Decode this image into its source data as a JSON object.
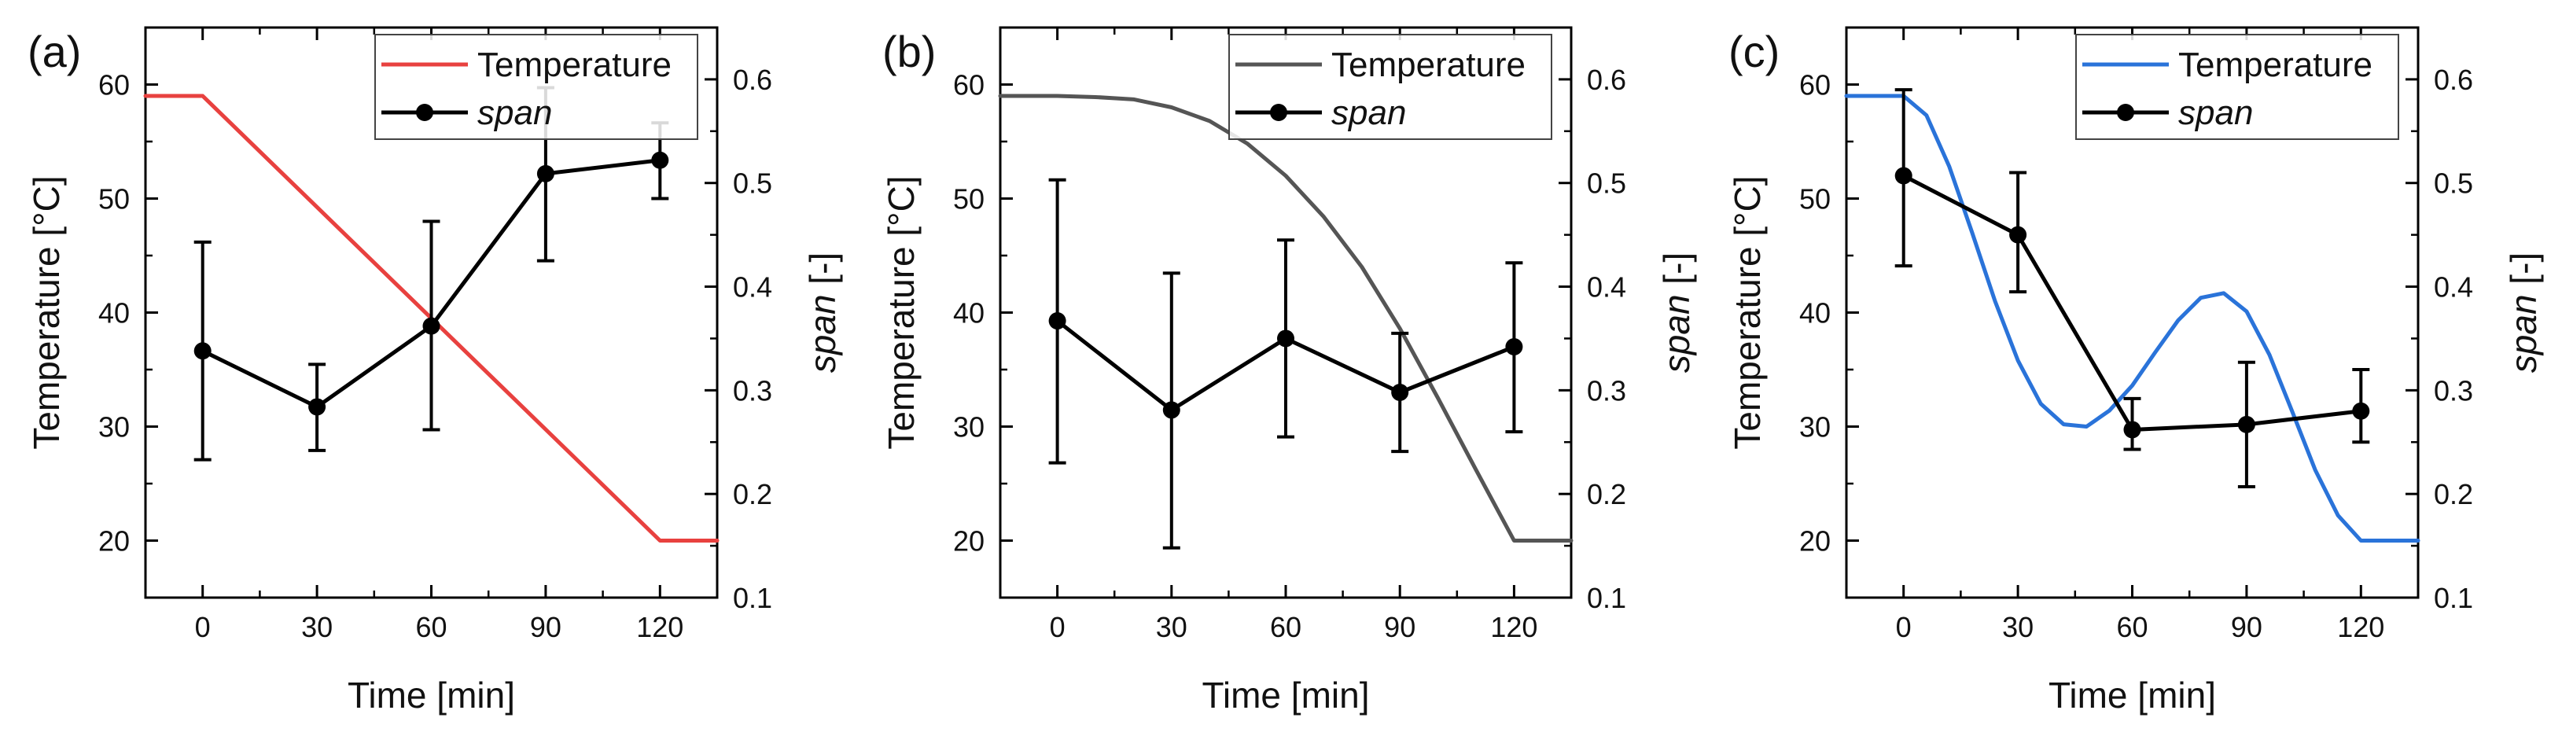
{
  "chart_data": [
    {
      "type": "line",
      "panel_label": "(a)",
      "xlabel": "Time [min]",
      "ylabel": "Temperature [°C]",
      "y2label_italic": "span",
      "y2label_rest": " [-]",
      "xlim": [
        -15,
        135
      ],
      "ylim": [
        15,
        65
      ],
      "y2lim": [
        0.1,
        0.65
      ],
      "xticks": [
        0,
        30,
        60,
        90,
        120
      ],
      "yticks": [
        20,
        30,
        40,
        50,
        60
      ],
      "y2ticks": [
        0.1,
        0.2,
        0.3,
        0.4,
        0.5,
        0.6
      ],
      "legend_position": "top-right",
      "temperature": {
        "name": "Temperature",
        "color": "#e8413f",
        "x": [
          -15,
          0,
          120,
          135
        ],
        "y": [
          59,
          59,
          20,
          20
        ]
      },
      "span": {
        "name": "span",
        "color": "#000000",
        "x": [
          0,
          30,
          60,
          90,
          120
        ],
        "y": [
          0.338,
          0.284,
          0.362,
          0.509,
          0.522
        ],
        "err_low": [
          0.233,
          0.242,
          0.262,
          0.425,
          0.485
        ],
        "err_high": [
          0.443,
          0.325,
          0.463,
          0.592,
          0.558
        ]
      }
    },
    {
      "type": "line",
      "panel_label": "(b)",
      "xlabel": "Time [min]",
      "ylabel": "Temperature [°C]",
      "y2label_italic": "span",
      "y2label_rest": " [-]",
      "xlim": [
        -15,
        135
      ],
      "ylim": [
        15,
        65
      ],
      "y2lim": [
        0.1,
        0.65
      ],
      "xticks": [
        0,
        30,
        60,
        90,
        120
      ],
      "yticks": [
        20,
        30,
        40,
        50,
        60
      ],
      "y2ticks": [
        0.1,
        0.2,
        0.3,
        0.4,
        0.5,
        0.6
      ],
      "legend_position": "top-right",
      "temperature": {
        "name": "Temperature",
        "color": "#555555",
        "x": [
          -15,
          0,
          10,
          20,
          30,
          40,
          50,
          60,
          70,
          80,
          90,
          100,
          110,
          120,
          135
        ],
        "y": [
          59,
          59,
          58.9,
          58.7,
          58.0,
          56.8,
          54.8,
          52.0,
          48.4,
          44.0,
          38.6,
          32.5,
          26.2,
          20,
          20
        ]
      },
      "span": {
        "name": "span",
        "color": "#000000",
        "x": [
          0,
          30,
          60,
          90,
          120
        ],
        "y": [
          0.367,
          0.281,
          0.35,
          0.298,
          0.342
        ],
        "err_low": [
          0.23,
          0.148,
          0.255,
          0.241,
          0.26
        ],
        "err_high": [
          0.503,
          0.413,
          0.445,
          0.355,
          0.423
        ]
      }
    },
    {
      "type": "line",
      "panel_label": "(c)",
      "xlabel": "Time [min]",
      "ylabel": "Temperature [°C]",
      "y2label_italic": "span",
      "y2label_rest": " [-]",
      "xlim": [
        -15,
        135
      ],
      "ylim": [
        15,
        65
      ],
      "y2lim": [
        0.1,
        0.65
      ],
      "xticks": [
        0,
        30,
        60,
        90,
        120
      ],
      "yticks": [
        20,
        30,
        40,
        50,
        60
      ],
      "y2ticks": [
        0.1,
        0.2,
        0.3,
        0.4,
        0.5,
        0.6
      ],
      "legend_position": "top-right",
      "temperature": {
        "name": "Temperature",
        "color": "#2a73d9",
        "x": [
          -15,
          0,
          6,
          12,
          18,
          24,
          30,
          36,
          42,
          48,
          54,
          60,
          66,
          72,
          78,
          84,
          90,
          96,
          102,
          108,
          114,
          120,
          135
        ],
        "y": [
          59,
          59,
          57.3,
          52.8,
          47.0,
          41.0,
          35.8,
          32.0,
          30.2,
          30.0,
          31.4,
          33.6,
          36.5,
          39.3,
          41.3,
          41.7,
          40.1,
          36.3,
          31.3,
          26.2,
          22.2,
          20,
          20
        ]
      },
      "span": {
        "name": "span",
        "color": "#000000",
        "x": [
          0,
          30,
          60,
          90,
          120
        ],
        "y": [
          0.507,
          0.45,
          0.262,
          0.267,
          0.28
        ],
        "err_low": [
          0.42,
          0.395,
          0.243,
          0.207,
          0.25
        ],
        "err_high": [
          0.59,
          0.51,
          0.292,
          0.327,
          0.32
        ]
      }
    }
  ]
}
